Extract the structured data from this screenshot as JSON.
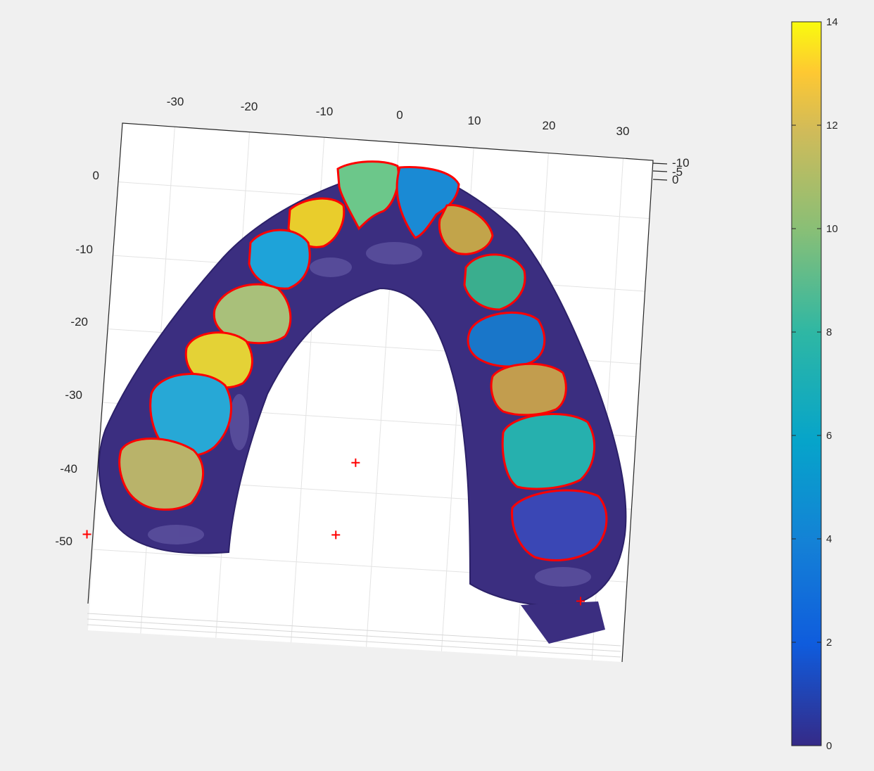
{
  "chart_data": {
    "type": "3d-surface",
    "title": "",
    "x_ticks": [
      "-30",
      "-20",
      "-10",
      "0",
      "10",
      "20",
      "30"
    ],
    "y_ticks": [
      "0",
      "-10",
      "-20",
      "-30",
      "-40",
      "-50"
    ],
    "z_ticks": [
      "-10",
      "-5",
      "0"
    ],
    "colorbar": {
      "ticks": [
        "0",
        "2",
        "4",
        "6",
        "8",
        "10",
        "12",
        "14"
      ],
      "range": [
        0,
        14
      ],
      "colormap": "parula"
    },
    "teeth": [
      {
        "label": 7,
        "x": -4,
        "y": 2
      },
      {
        "label": 3,
        "x": 4,
        "y": 3
      },
      {
        "label": 13,
        "x": -10,
        "y": -6
      },
      {
        "label": 11,
        "x": 10,
        "y": -8
      },
      {
        "label": 5,
        "x": -17,
        "y": -13
      },
      {
        "label": 7,
        "x": 11,
        "y": -16
      },
      {
        "label": 9,
        "x": -20,
        "y": -22
      },
      {
        "label": 2,
        "x": 12,
        "y": -25
      },
      {
        "label": 13,
        "x": -24,
        "y": -31
      },
      {
        "label": 11,
        "x": 16,
        "y": -33
      },
      {
        "label": 5,
        "x": -26,
        "y": -40
      },
      {
        "label": 6,
        "x": 20,
        "y": -42
      },
      {
        "label": 10,
        "x": -31,
        "y": -48
      },
      {
        "label": 1,
        "x": 21,
        "y": -52
      }
    ],
    "markers": [
      {
        "x": -3,
        "y": -36
      },
      {
        "x": -5,
        "y": -46
      },
      {
        "x": -38,
        "y": -48
      },
      {
        "x": 28,
        "y": -53
      }
    ]
  }
}
